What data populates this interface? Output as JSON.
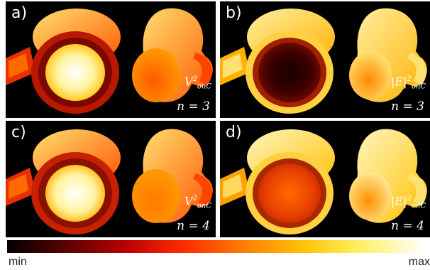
{
  "panels": [
    {
      "label": "a)",
      "quantity": {
        "base": "V",
        "sup": "2",
        "sub": "onC"
      },
      "order": "n = 3"
    },
    {
      "label": "b)",
      "quantity": {
        "base": "|E|",
        "sup": "2",
        "sub": "onC"
      },
      "order": "n = 3"
    },
    {
      "label": "c)",
      "quantity": {
        "base": "V",
        "sup": "2",
        "sub": "onC"
      },
      "order": "n = 4"
    },
    {
      "label": "d)",
      "quantity": {
        "base": "|E|",
        "sup": "2",
        "sub": "onC"
      },
      "order": "n = 4"
    }
  ],
  "colorbar": {
    "min_label": "min",
    "max_label": "max"
  }
}
